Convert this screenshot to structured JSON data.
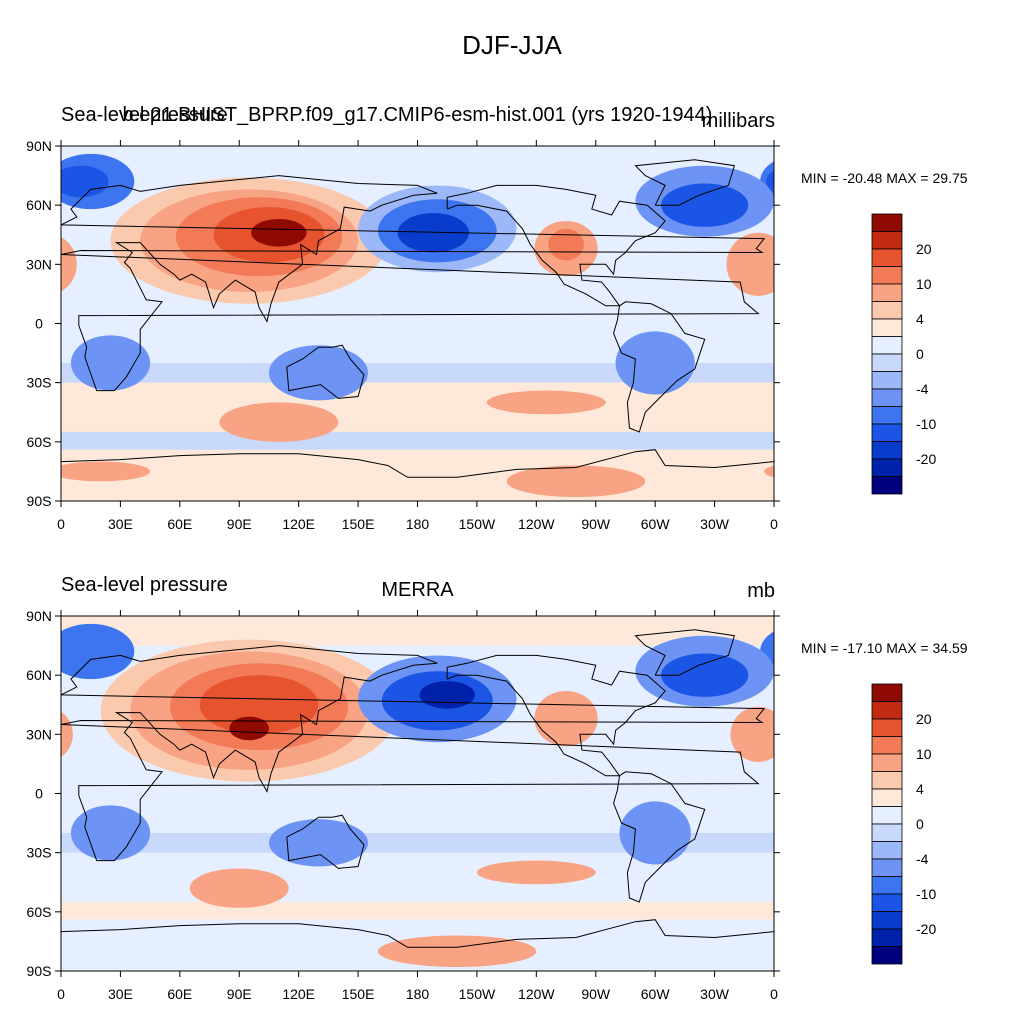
{
  "main_title": "DJF-JJA",
  "colors": {
    "levels": [
      "#00007f",
      "#0022aa",
      "#0a3ccc",
      "#1a55e6",
      "#3d74f0",
      "#6d94f5",
      "#9db8f8",
      "#c8d9fb",
      "#e5efff",
      "#fde8d9",
      "#fbc9ad",
      "#f8a383",
      "#f27a56",
      "#e8532f",
      "#c32a12",
      "#8f0a00"
    ],
    "land_outline": "#000000"
  },
  "colorbar": {
    "labels": [
      "20",
      "10",
      "4",
      "0",
      "-4",
      "-10",
      "-20"
    ]
  },
  "axes": {
    "lat_labels": [
      "90N",
      "60N",
      "30N",
      "0",
      "30S",
      "60S",
      "90S"
    ],
    "lon_labels": [
      "0",
      "30E",
      "60E",
      "90E",
      "120E",
      "150E",
      "180",
      "150W",
      "120W",
      "90W",
      "60W",
      "30W",
      "0"
    ]
  },
  "panels": [
    {
      "left_title": "Sea-level pressure",
      "center_title": "b.e21.BHIST_BPRP.f09_g17.CMIP6-esm-hist.001 (yrs 1920-1944)",
      "right_title": "millibars",
      "minmax": "MIN = -20.48 MAX =  29.75"
    },
    {
      "left_title": "Sea-level pressure",
      "center_title": "MERRA",
      "right_title": "mb",
      "minmax": "MIN = -17.10 MAX =  34.59"
    }
  ]
}
